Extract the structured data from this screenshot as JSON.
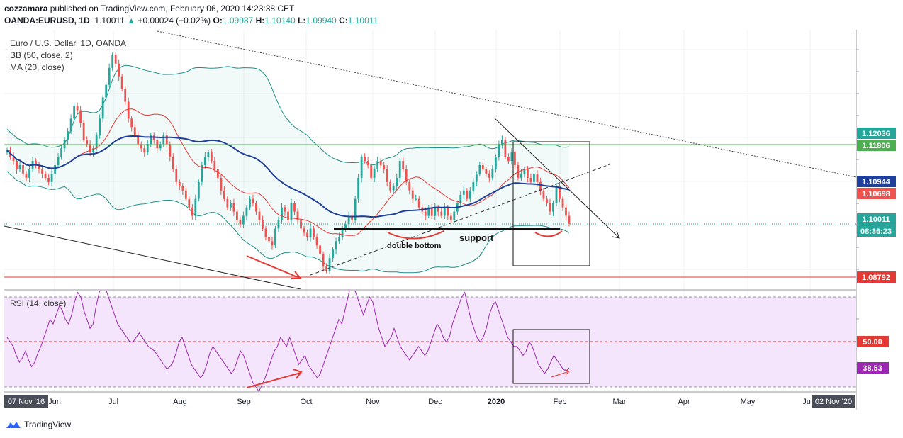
{
  "header": {
    "publisher": "cozzamara",
    "published_text": "published on TradingView.com, February 06, 2020 14:23:38 CET",
    "symbol": "OANDA:EURUSD, 1D",
    "last": "1.10011",
    "change": "+0.00024 (+0.02%)",
    "o_label": "O:",
    "o_val": "1.09987",
    "h_label": "H:",
    "h_val": "1.10140",
    "l_label": "L:",
    "l_val": "1.09940",
    "c_label": "C:",
    "c_val": "1.10011"
  },
  "legend": {
    "instrument": "Euro / U.S. Dollar, 1D, OANDA",
    "bb": "BB (50, close, 2)",
    "ma": "MA (20, close)",
    "rsi": "RSI (14, close)"
  },
  "chart_data": [
    {
      "type": "candlestick",
      "title": "Euro / U.S. Dollar, 1D, OANDA",
      "x_ticks": [
        "07 Nov '16",
        "Jun",
        "Jul",
        "Aug",
        "Sep",
        "Oct",
        "Nov",
        "Dec",
        "2020",
        "Feb",
        "Mar",
        "Apr",
        "May",
        "Ju",
        "02 Nov '20"
      ],
      "price_labels": [
        {
          "value": "1.12036",
          "color": "#26a69a"
        },
        {
          "value": "1.11806",
          "color": "#4caf50"
        },
        {
          "value": "1.10944",
          "color": "#1e3f9a"
        },
        {
          "value": "1.10698",
          "color": "#ef5350"
        },
        {
          "value": "1.10011",
          "color": "#26a69a"
        },
        {
          "value": "08:36:23",
          "color": "#26a69a"
        },
        {
          "value": "1.08792",
          "color": "#e53935"
        }
      ],
      "annotations": [
        "double bottom",
        "support"
      ],
      "horizontal_levels": [
        {
          "value": 1.11806,
          "color": "#4caf50"
        },
        {
          "value": 1.08792,
          "color": "#e53935"
        },
        {
          "value": 1.10011,
          "color": "#26a69a",
          "style": "dotted"
        }
      ],
      "close_series": [
        1.1175,
        1.116,
        1.115,
        1.113,
        1.114,
        1.112,
        1.111,
        1.113,
        1.115,
        1.114,
        1.113,
        1.112,
        1.111,
        1.11,
        1.112,
        1.114,
        1.116,
        1.118,
        1.12,
        1.122,
        1.125,
        1.128,
        1.127,
        1.124,
        1.12,
        1.119,
        1.117,
        1.118,
        1.121,
        1.125,
        1.13,
        1.133,
        1.137,
        1.14,
        1.138,
        1.135,
        1.132,
        1.129,
        1.125,
        1.123,
        1.121,
        1.119,
        1.118,
        1.117,
        1.119,
        1.121,
        1.12,
        1.118,
        1.119,
        1.121,
        1.119,
        1.116,
        1.113,
        1.11,
        1.109,
        1.108,
        1.106,
        1.104,
        1.102,
        1.106,
        1.11,
        1.114,
        1.116,
        1.117,
        1.115,
        1.113,
        1.111,
        1.108,
        1.106,
        1.104,
        1.105,
        1.103,
        1.101,
        1.1,
        1.102,
        1.104,
        1.106,
        1.105,
        1.103,
        1.101,
        1.099,
        1.097,
        1.096,
        1.095,
        1.099,
        1.101,
        1.104,
        1.103,
        1.101,
        1.105,
        1.103,
        1.101,
        1.099,
        1.098,
        1.097,
        1.099,
        1.097,
        1.095,
        1.093,
        1.09,
        1.089,
        1.092,
        1.094,
        1.096,
        1.097,
        1.099,
        1.1,
        1.102,
        1.101,
        1.106,
        1.111,
        1.116,
        1.115,
        1.114,
        1.111,
        1.113,
        1.115,
        1.114,
        1.113,
        1.11,
        1.108,
        1.109,
        1.111,
        1.115,
        1.113,
        1.11,
        1.108,
        1.106,
        1.106,
        1.104,
        1.103,
        1.102,
        1.104,
        1.102,
        1.104,
        1.103,
        1.102,
        1.104,
        1.102,
        1.101,
        1.103,
        1.105,
        1.107,
        1.108,
        1.106,
        1.108,
        1.11,
        1.112,
        1.114,
        1.113,
        1.112,
        1.111,
        1.113,
        1.116,
        1.119,
        1.12,
        1.116,
        1.115,
        1.117,
        1.114,
        1.111,
        1.112,
        1.113,
        1.111,
        1.11,
        1.112,
        1.11,
        1.108,
        1.106,
        1.105,
        1.103,
        1.105,
        1.109,
        1.106,
        1.104,
        1.102,
        1.1001
      ]
    },
    {
      "type": "line",
      "title": "RSI (14, close)",
      "ylim": [
        0,
        100
      ],
      "levels": [
        30,
        50,
        70
      ],
      "price_labels": [
        {
          "value": "50.00",
          "color": "#e53935"
        },
        {
          "value": "38.53",
          "color": "#9c27b0"
        }
      ],
      "values": [
        52,
        50,
        48,
        44,
        41,
        43,
        46,
        42,
        39,
        41,
        45,
        48,
        52,
        56,
        60,
        58,
        62,
        66,
        64,
        60,
        58,
        62,
        68,
        72,
        70,
        64,
        60,
        56,
        58,
        66,
        72,
        76,
        74,
        70,
        66,
        62,
        58,
        56,
        54,
        52,
        50,
        50,
        52,
        54,
        52,
        50,
        48,
        47,
        46,
        44,
        42,
        40,
        38,
        39,
        41,
        45,
        50,
        52,
        48,
        44,
        40,
        38,
        36,
        34,
        36,
        40,
        45,
        48,
        46,
        44,
        42,
        40,
        38,
        36,
        38,
        42,
        46,
        44,
        40,
        36,
        32,
        30,
        28,
        31,
        34,
        38,
        42,
        46,
        48,
        52,
        50,
        48,
        52,
        48,
        44,
        40,
        42,
        44,
        40,
        38,
        36,
        34,
        36,
        40,
        44,
        48,
        52,
        56,
        60,
        58,
        64,
        70,
        76,
        74,
        70,
        66,
        62,
        66,
        70,
        68,
        62,
        56,
        52,
        48,
        50,
        52,
        56,
        52,
        48,
        46,
        44,
        42,
        44,
        46,
        48,
        46,
        44,
        46,
        50,
        54,
        58,
        56,
        52,
        50,
        52,
        58,
        62,
        66,
        70,
        72,
        66,
        60,
        56,
        52,
        50,
        52,
        56,
        62,
        66,
        68,
        64,
        60,
        56,
        52,
        50,
        48,
        48,
        46,
        44,
        46,
        50,
        48,
        44,
        40,
        38,
        36,
        38,
        41,
        44,
        42,
        40,
        38,
        37,
        38.53
      ]
    }
  ]
}
